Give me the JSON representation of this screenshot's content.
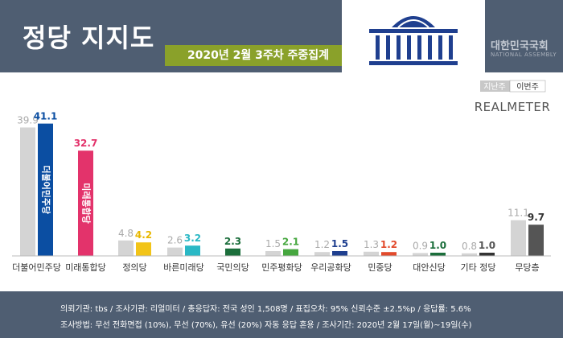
{
  "header": {
    "title": "정당 지지도",
    "period_badge": "2020년 2월 3주차 주중집계",
    "assembly_name_ko": "대한민국국회",
    "assembly_name_en": "NATIONAL ASSEMBLY"
  },
  "legend": {
    "prev_label": "지난주",
    "curr_label": "이번주",
    "brand": "REALMETER"
  },
  "colors": {
    "header_bg": "#4f5e72",
    "badge_bg": "#8aa12a",
    "prev_bar": "#d4d4d4",
    "label_gray": "#aaaaaa",
    "axis": "#bbbbbb"
  },
  "chart_data": {
    "type": "bar",
    "categories": [
      "더불어민주당",
      "미래통합당",
      "정의당",
      "바른미래당",
      "국민의당",
      "민주평화당",
      "우리공화당",
      "민중당",
      "대안신당",
      "기타 정당",
      "무당층"
    ],
    "series": [
      {
        "name": "지난주",
        "values": [
          39.9,
          null,
          4.8,
          2.6,
          null,
          1.5,
          1.2,
          1.3,
          0.9,
          0.8,
          11.1
        ]
      },
      {
        "name": "이번주",
        "values": [
          41.1,
          32.7,
          4.2,
          3.2,
          2.3,
          2.1,
          1.5,
          1.2,
          1.0,
          1.0,
          9.7
        ]
      }
    ],
    "series_colors": [
      "#d4d4d4",
      [
        "#0b4ea2",
        "#e3336b",
        "#f2c418",
        "#2ab8c5",
        "#1b6e3b",
        "#46a73f",
        "#1f3f8f",
        "#e24a2c",
        "#1b6e3b",
        "#333333",
        "#555555"
      ]
    ],
    "value_colors": [
      "#0b4ea2",
      "#e3336b",
      "#e8b800",
      "#2ab8c5",
      "#1b6e3b",
      "#46a73f",
      "#1f3f8f",
      "#e24a2c",
      "#1b6e3b",
      "#555555",
      "#333333"
    ],
    "bar_inner_text": {
      "0": "더불어민주당",
      "1": "미래통합당"
    },
    "ylim": [
      0,
      45
    ],
    "grid": false
  },
  "footer": {
    "line1": "의뢰기관: tbs / 조사기관: 리얼미터 / 총응답자: 전국 성인 1,508명 / 표집오차: 95% 신뢰수준 ±2.5%p / 응답률: 5.6%",
    "line2": "조사방법: 무선 전화면접 (10%), 무선 (70%), 유선 (20%) 자동 응답 혼용 / 조사기간: 2020년 2월 17일(월)~19일(수)"
  }
}
